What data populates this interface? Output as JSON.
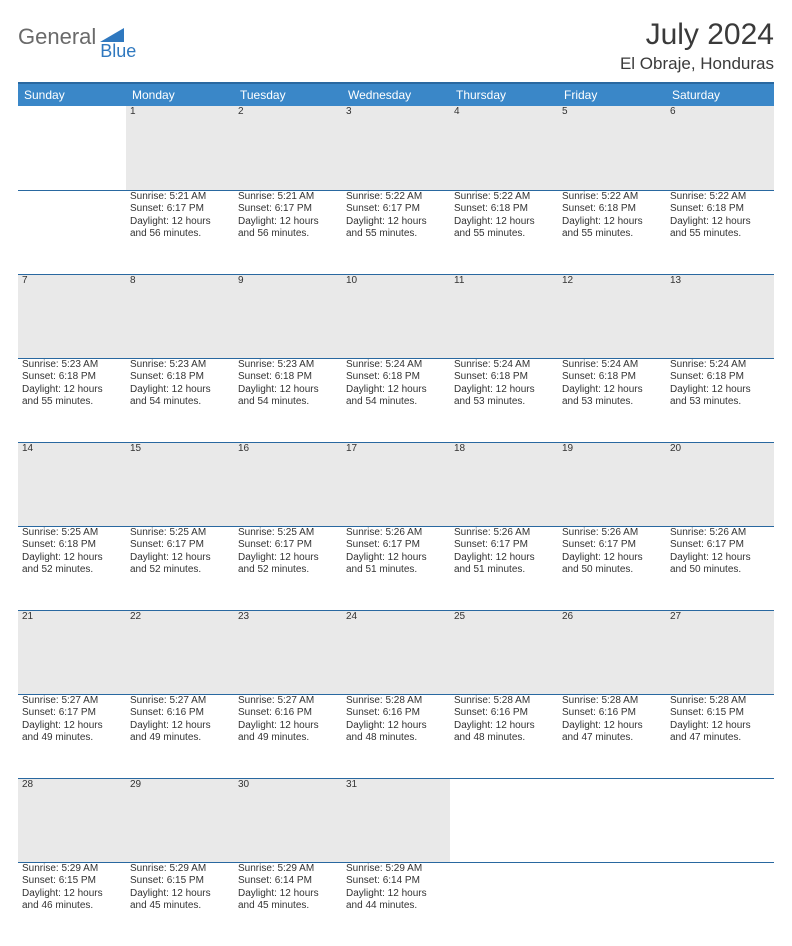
{
  "logo": {
    "general": "General",
    "blue": "Blue",
    "accent_color": "#2f78bf",
    "gray_color": "#6a6a6a"
  },
  "header": {
    "title": "July 2024",
    "location": "El Obraje, Honduras"
  },
  "colors": {
    "header_bg": "#3a87c8",
    "header_border": "#2968a0",
    "daynum_bg": "#e9e9e9",
    "text": "#333333"
  },
  "weekdays": [
    "Sunday",
    "Monday",
    "Tuesday",
    "Wednesday",
    "Thursday",
    "Friday",
    "Saturday"
  ],
  "weeks": [
    {
      "nums": [
        "",
        "1",
        "2",
        "3",
        "4",
        "5",
        "6"
      ],
      "cells": [
        null,
        {
          "sunrise": "Sunrise: 5:21 AM",
          "sunset": "Sunset: 6:17 PM",
          "d1": "Daylight: 12 hours",
          "d2": "and 56 minutes."
        },
        {
          "sunrise": "Sunrise: 5:21 AM",
          "sunset": "Sunset: 6:17 PM",
          "d1": "Daylight: 12 hours",
          "d2": "and 56 minutes."
        },
        {
          "sunrise": "Sunrise: 5:22 AM",
          "sunset": "Sunset: 6:17 PM",
          "d1": "Daylight: 12 hours",
          "d2": "and 55 minutes."
        },
        {
          "sunrise": "Sunrise: 5:22 AM",
          "sunset": "Sunset: 6:18 PM",
          "d1": "Daylight: 12 hours",
          "d2": "and 55 minutes."
        },
        {
          "sunrise": "Sunrise: 5:22 AM",
          "sunset": "Sunset: 6:18 PM",
          "d1": "Daylight: 12 hours",
          "d2": "and 55 minutes."
        },
        {
          "sunrise": "Sunrise: 5:22 AM",
          "sunset": "Sunset: 6:18 PM",
          "d1": "Daylight: 12 hours",
          "d2": "and 55 minutes."
        }
      ]
    },
    {
      "nums": [
        "7",
        "8",
        "9",
        "10",
        "11",
        "12",
        "13"
      ],
      "cells": [
        {
          "sunrise": "Sunrise: 5:23 AM",
          "sunset": "Sunset: 6:18 PM",
          "d1": "Daylight: 12 hours",
          "d2": "and 55 minutes."
        },
        {
          "sunrise": "Sunrise: 5:23 AM",
          "sunset": "Sunset: 6:18 PM",
          "d1": "Daylight: 12 hours",
          "d2": "and 54 minutes."
        },
        {
          "sunrise": "Sunrise: 5:23 AM",
          "sunset": "Sunset: 6:18 PM",
          "d1": "Daylight: 12 hours",
          "d2": "and 54 minutes."
        },
        {
          "sunrise": "Sunrise: 5:24 AM",
          "sunset": "Sunset: 6:18 PM",
          "d1": "Daylight: 12 hours",
          "d2": "and 54 minutes."
        },
        {
          "sunrise": "Sunrise: 5:24 AM",
          "sunset": "Sunset: 6:18 PM",
          "d1": "Daylight: 12 hours",
          "d2": "and 53 minutes."
        },
        {
          "sunrise": "Sunrise: 5:24 AM",
          "sunset": "Sunset: 6:18 PM",
          "d1": "Daylight: 12 hours",
          "d2": "and 53 minutes."
        },
        {
          "sunrise": "Sunrise: 5:24 AM",
          "sunset": "Sunset: 6:18 PM",
          "d1": "Daylight: 12 hours",
          "d2": "and 53 minutes."
        }
      ]
    },
    {
      "nums": [
        "14",
        "15",
        "16",
        "17",
        "18",
        "19",
        "20"
      ],
      "cells": [
        {
          "sunrise": "Sunrise: 5:25 AM",
          "sunset": "Sunset: 6:18 PM",
          "d1": "Daylight: 12 hours",
          "d2": "and 52 minutes."
        },
        {
          "sunrise": "Sunrise: 5:25 AM",
          "sunset": "Sunset: 6:17 PM",
          "d1": "Daylight: 12 hours",
          "d2": "and 52 minutes."
        },
        {
          "sunrise": "Sunrise: 5:25 AM",
          "sunset": "Sunset: 6:17 PM",
          "d1": "Daylight: 12 hours",
          "d2": "and 52 minutes."
        },
        {
          "sunrise": "Sunrise: 5:26 AM",
          "sunset": "Sunset: 6:17 PM",
          "d1": "Daylight: 12 hours",
          "d2": "and 51 minutes."
        },
        {
          "sunrise": "Sunrise: 5:26 AM",
          "sunset": "Sunset: 6:17 PM",
          "d1": "Daylight: 12 hours",
          "d2": "and 51 minutes."
        },
        {
          "sunrise": "Sunrise: 5:26 AM",
          "sunset": "Sunset: 6:17 PM",
          "d1": "Daylight: 12 hours",
          "d2": "and 50 minutes."
        },
        {
          "sunrise": "Sunrise: 5:26 AM",
          "sunset": "Sunset: 6:17 PM",
          "d1": "Daylight: 12 hours",
          "d2": "and 50 minutes."
        }
      ]
    },
    {
      "nums": [
        "21",
        "22",
        "23",
        "24",
        "25",
        "26",
        "27"
      ],
      "cells": [
        {
          "sunrise": "Sunrise: 5:27 AM",
          "sunset": "Sunset: 6:17 PM",
          "d1": "Daylight: 12 hours",
          "d2": "and 49 minutes."
        },
        {
          "sunrise": "Sunrise: 5:27 AM",
          "sunset": "Sunset: 6:16 PM",
          "d1": "Daylight: 12 hours",
          "d2": "and 49 minutes."
        },
        {
          "sunrise": "Sunrise: 5:27 AM",
          "sunset": "Sunset: 6:16 PM",
          "d1": "Daylight: 12 hours",
          "d2": "and 49 minutes."
        },
        {
          "sunrise": "Sunrise: 5:28 AM",
          "sunset": "Sunset: 6:16 PM",
          "d1": "Daylight: 12 hours",
          "d2": "and 48 minutes."
        },
        {
          "sunrise": "Sunrise: 5:28 AM",
          "sunset": "Sunset: 6:16 PM",
          "d1": "Daylight: 12 hours",
          "d2": "and 48 minutes."
        },
        {
          "sunrise": "Sunrise: 5:28 AM",
          "sunset": "Sunset: 6:16 PM",
          "d1": "Daylight: 12 hours",
          "d2": "and 47 minutes."
        },
        {
          "sunrise": "Sunrise: 5:28 AM",
          "sunset": "Sunset: 6:15 PM",
          "d1": "Daylight: 12 hours",
          "d2": "and 47 minutes."
        }
      ]
    },
    {
      "nums": [
        "28",
        "29",
        "30",
        "31",
        "",
        "",
        ""
      ],
      "cells": [
        {
          "sunrise": "Sunrise: 5:29 AM",
          "sunset": "Sunset: 6:15 PM",
          "d1": "Daylight: 12 hours",
          "d2": "and 46 minutes."
        },
        {
          "sunrise": "Sunrise: 5:29 AM",
          "sunset": "Sunset: 6:15 PM",
          "d1": "Daylight: 12 hours",
          "d2": "and 45 minutes."
        },
        {
          "sunrise": "Sunrise: 5:29 AM",
          "sunset": "Sunset: 6:14 PM",
          "d1": "Daylight: 12 hours",
          "d2": "and 45 minutes."
        },
        {
          "sunrise": "Sunrise: 5:29 AM",
          "sunset": "Sunset: 6:14 PM",
          "d1": "Daylight: 12 hours",
          "d2": "and 44 minutes."
        },
        null,
        null,
        null
      ]
    }
  ]
}
